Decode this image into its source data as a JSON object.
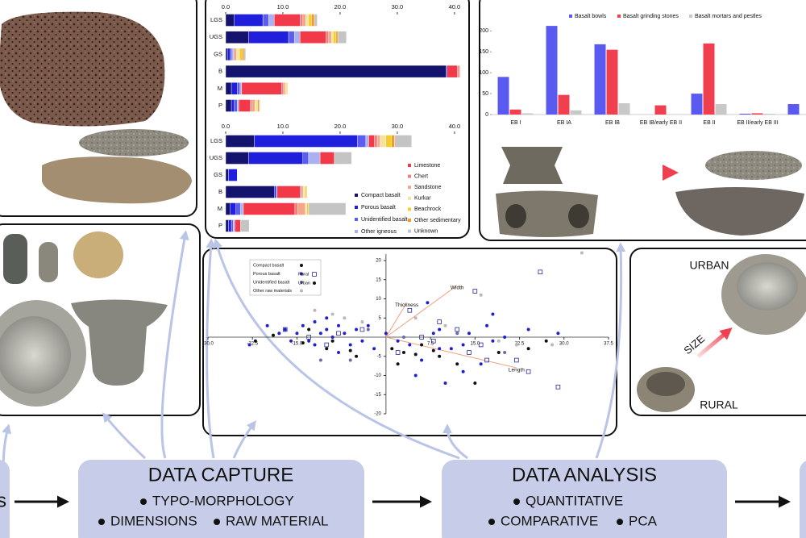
{
  "chart_data": [
    {
      "type": "stacked-barh",
      "categories": [
        "LGS",
        "UGS",
        "GS",
        "B",
        "M",
        "P"
      ],
      "xlim": [
        0,
        41
      ],
      "xticks": [
        {
          "value": 0,
          "label": "0.0"
        },
        {
          "value": 10,
          "label": "10.0"
        },
        {
          "value": 20,
          "label": "20.0"
        },
        {
          "value": 30,
          "label": "30.0"
        },
        {
          "value": 40,
          "label": "40.0"
        }
      ],
      "series": [
        {
          "values": [
            1.5,
            4,
            0.3,
            38.5,
            1,
            1
          ]
        },
        {
          "values": [
            5,
            7,
            0.5,
            0.2,
            1,
            0.5
          ]
        },
        {
          "values": [
            1,
            1,
            0.3,
            0,
            0.5,
            0.5
          ]
        },
        {
          "values": [
            1,
            1,
            0.3,
            0,
            0.3,
            0.3
          ]
        },
        {
          "values": [
            4.5,
            4.5,
            0,
            1.8,
            7,
            2
          ]
        },
        {
          "values": [
            0.5,
            0.5,
            0,
            0.3,
            0.3,
            0.3
          ]
        },
        {
          "values": [
            0.5,
            0.5,
            0.5,
            0.2,
            0.3,
            0.5
          ]
        },
        {
          "values": [
            0.5,
            0.3,
            0.5,
            0,
            0.2,
            0.3
          ]
        },
        {
          "values": [
            0.5,
            0.5,
            0.5,
            0,
            0.2,
            0.2
          ]
        },
        {
          "values": [
            0.5,
            0.3,
            0.3,
            0,
            0,
            0.2
          ]
        },
        {
          "values": [
            0.5,
            1.5,
            0.3,
            0,
            0,
            0.2
          ]
        }
      ]
    },
    {
      "type": "stacked-barh",
      "categories": [
        "LGS",
        "UGS",
        "GS",
        "B",
        "M",
        "P"
      ],
      "xlim": [
        0,
        41
      ],
      "xticks": [
        {
          "value": 0,
          "label": "0.0"
        },
        {
          "value": 10,
          "label": "10.0"
        },
        {
          "value": 20,
          "label": "20.0"
        },
        {
          "value": 30,
          "label": "30.0"
        },
        {
          "value": 40,
          "label": "40.0"
        }
      ],
      "series": [
        {
          "name": "Compact basalt",
          "color": "#14146e",
          "values": [
            5,
            4,
            0.5,
            8.5,
            0.8,
            0.5
          ]
        },
        {
          "name": "Porous basalt",
          "color": "#1f1fdc",
          "values": [
            18,
            9.5,
            1.5,
            0.3,
            1,
            0.5
          ]
        },
        {
          "name": "Unidentified basalt",
          "color": "#5c5cf0",
          "values": [
            1.5,
            1,
            0,
            0.2,
            0.8,
            0.3
          ]
        },
        {
          "name": "Other igneous",
          "color": "#aab0f0",
          "values": [
            0.5,
            2,
            0,
            0,
            0.5,
            0.3
          ]
        },
        {
          "name": "Limestone",
          "color": "#f2394a",
          "values": [
            1,
            2.5,
            0,
            4,
            9,
            1
          ]
        },
        {
          "name": "Chert",
          "color": "#f27b7b",
          "values": [
            0.5,
            0,
            0,
            0.3,
            0.5,
            0
          ]
        },
        {
          "name": "Sandstone",
          "color": "#f4a68a",
          "values": [
            0.5,
            0,
            0,
            0.3,
            1.3,
            0
          ]
        },
        {
          "name": "Kurkar",
          "color": "#f2e4a0",
          "values": [
            1,
            0,
            0,
            0.3,
            0.3,
            0
          ]
        },
        {
          "name": "Beachrock",
          "color": "#f5cd2a",
          "values": [
            1,
            0,
            0,
            0.3,
            0.3,
            0
          ]
        },
        {
          "name": "Other sedimentary",
          "color": "#f59a1e",
          "values": [
            0.5,
            0,
            0,
            0,
            0,
            0
          ]
        },
        {
          "name": "Unknown",
          "color": "#c4c4c4",
          "values": [
            3,
            3,
            0,
            0,
            6.5,
            1.5
          ]
        }
      ]
    },
    {
      "type": "bar",
      "categories": [
        "EB I",
        "EB IA",
        "EB IB",
        "EB IB/early EB II",
        "EB II",
        "EB II/early EB III",
        null
      ],
      "ylim": [
        0,
        245
      ],
      "yticks": [
        0,
        50,
        100,
        150,
        200
      ],
      "series": [
        {
          "name": "Basalt bowls",
          "color": "#5a5af0",
          "values": [
            90,
            212,
            168,
            0,
            50,
            2,
            25
          ]
        },
        {
          "name": "Basalt grinding stones",
          "color": "#f04050",
          "values": [
            12,
            47,
            155,
            22,
            170,
            3,
            0
          ]
        },
        {
          "name": "Basalt mortars and pestles",
          "color": "#c8c8c8",
          "values": [
            3,
            10,
            27,
            0,
            25,
            2,
            0
          ]
        }
      ]
    },
    {
      "type": "scatter",
      "xlim": [
        -30,
        37.5
      ],
      "ylim": [
        -20,
        20
      ],
      "xticks": [
        {
          "value": -30,
          "label": "-30.0"
        },
        {
          "value": -22.5,
          "label": "-22.5"
        },
        {
          "value": -15,
          "label": "-15.0"
        },
        {
          "value": 7.5,
          "label": "7.5"
        },
        {
          "value": 15,
          "label": "15.0"
        },
        {
          "value": 22.5,
          "label": "22.5"
        },
        {
          "value": 30,
          "label": "30.0"
        },
        {
          "value": 37.5,
          "label": "37.5"
        }
      ],
      "yticks": [
        -20,
        -15,
        -10,
        -5,
        5,
        10,
        15,
        20
      ],
      "series": [
        {
          "name": "Compact basalt",
          "color": "#111111",
          "marker": "circle",
          "x": [
            -22,
            -19,
            -14,
            -10,
            -6,
            -5,
            1,
            3,
            5,
            6,
            9,
            12,
            15,
            19,
            24,
            27,
            -13,
            -9,
            2,
            8
          ],
          "y": [
            -1,
            0.5,
            -1.5,
            -3,
            -3.5,
            -5,
            -3,
            -4,
            -4.5,
            -2,
            -5,
            -7,
            -12,
            -4,
            -3,
            -1,
            2,
            -1,
            -7,
            -3.5
          ]
        },
        {
          "name": "Porous basalt",
          "color": "#1f1fd0",
          "marker": "circle",
          "x": [
            -20,
            -18,
            -17,
            -16,
            -15,
            -14,
            -13,
            -12,
            -12,
            -11,
            -10,
            -10,
            -9,
            -8,
            -8,
            -7,
            -6,
            -5,
            -4,
            -3,
            -2,
            0,
            2,
            4,
            5,
            6,
            8,
            9,
            10,
            11,
            13,
            14,
            17,
            18,
            13,
            20,
            24,
            9,
            7,
            18,
            29,
            -23,
            16
          ],
          "y": [
            3,
            1,
            2,
            -1,
            1,
            3,
            -1,
            -2,
            4,
            1,
            2,
            5,
            0,
            3,
            -4,
            1,
            -2,
            2,
            -1,
            3,
            -3,
            1,
            -1,
            -2,
            -10,
            -6,
            1,
            -3,
            -12,
            -3,
            -2,
            1,
            3,
            -1,
            -9,
            0,
            2,
            2,
            9,
            6,
            1,
            -2,
            -7
          ]
        },
        {
          "name": "Unidentified basalt",
          "color": "#6a6aa8",
          "marker": "circle",
          "x": [
            -11,
            -6,
            -3,
            3,
            12,
            20
          ],
          "y": [
            -6,
            -6,
            2,
            0,
            1,
            -4
          ]
        },
        {
          "name": "Other raw materials",
          "color": "#b8b8b8",
          "marker": "circle",
          "x": [
            -12,
            -9,
            -7,
            -4,
            5,
            10,
            19,
            22,
            28,
            33,
            16
          ],
          "y": [
            7,
            6,
            5,
            4,
            5,
            3,
            -1,
            -2,
            -2,
            22,
            11
          ]
        },
        {
          "name": "Rural",
          "color": "#2a2a9a",
          "marker": "square",
          "x": [
            -17,
            -13,
            -8,
            -4,
            2,
            6,
            9,
            12,
            14,
            16,
            17,
            22,
            24,
            29,
            15,
            26,
            -10,
            4,
            8
          ],
          "y": [
            2,
            0,
            1,
            2,
            -4,
            0,
            4,
            2,
            -4,
            -2,
            -6,
            -6,
            -9,
            -13,
            12,
            17,
            -2,
            7,
            -1
          ]
        }
      ],
      "marker_legend": [
        {
          "name": "Urban",
          "marker": "circle"
        }
      ],
      "vectors": [
        {
          "label": "Width",
          "x": 12,
          "y": 13.5
        },
        {
          "label": "Thickness",
          "x": 3.5,
          "y": 9
        },
        {
          "label": "Length",
          "x": 22,
          "y": -8
        }
      ]
    }
  ],
  "diagram": {
    "left_box": "s",
    "data_capture": {
      "title": "DATA CAPTURE",
      "items": [
        "TYPO-MORPHOLOGY",
        "DIMENSIONS",
        "RAW MATERIAL"
      ]
    },
    "data_analysis": {
      "title": "DATA ANALYSIS",
      "items": [
        "QUANTITATIVE",
        "COMPARATIVE",
        "PCA"
      ]
    },
    "photo_labels": {
      "urban": "URBAN",
      "rural": "RURAL",
      "size": "SIZE"
    }
  }
}
